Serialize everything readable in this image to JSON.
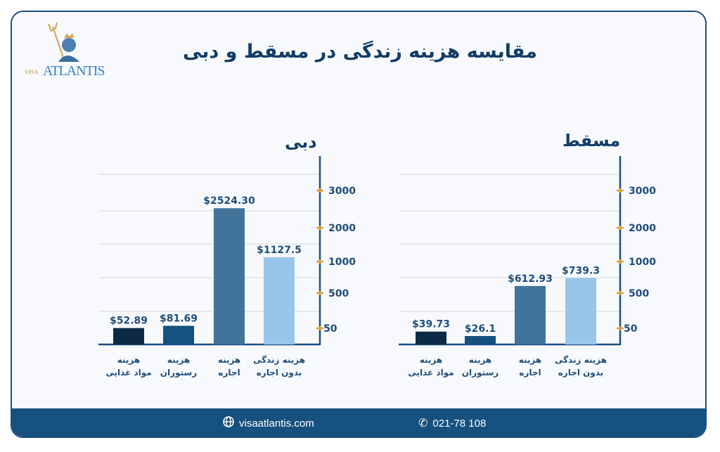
{
  "title": "مقایسه هزینه زندگی در مسقط و دبی",
  "logo": {
    "visa": "VISA",
    "brand": "ATLANTIS"
  },
  "footer": {
    "website": "visaatlantis.com",
    "phone": "021-78 108",
    "website_icon": "globe-icon",
    "phone_icon": "phone-icon"
  },
  "colors": {
    "text": "#1f4e79",
    "tick_dot": "#f0a020",
    "footer": "#15507f",
    "bars": [
      "#0c2a45",
      "#15507f",
      "#41739b",
      "#98c6eb"
    ]
  },
  "chart_data": [
    {
      "type": "bar",
      "title": "دبی",
      "categories": [
        [
          "هزینه",
          "مواد غذایی"
        ],
        [
          "هزینه",
          "رستوران"
        ],
        [
          "هزینه",
          "اجاره"
        ],
        [
          "هزینه زندگی",
          "بدون اجاره"
        ]
      ],
      "values": [
        52.89,
        81.69,
        2524.3,
        1127.5
      ],
      "data_labels": [
        "$52.89",
        "$81.69",
        "$2524.30",
        "$1127.5"
      ],
      "yticks": [
        50,
        500,
        1000,
        2000,
        3000
      ],
      "yaxis_position": "right",
      "grid": true
    },
    {
      "type": "bar",
      "title": "مسقط",
      "categories": [
        [
          "هزینه",
          "مواد غذایی"
        ],
        [
          "هزینه",
          "رستوران"
        ],
        [
          "هزینه",
          "اجاره"
        ],
        [
          "هزینه زندگی",
          "بدون اجاره"
        ]
      ],
      "values": [
        39.73,
        26.1,
        612.93,
        739.3
      ],
      "data_labels": [
        "$39.73",
        "$26.1",
        "$612.93",
        "$739.3"
      ],
      "yticks": [
        50,
        500,
        1000,
        2000,
        3000
      ],
      "yaxis_position": "right",
      "grid": true
    }
  ]
}
